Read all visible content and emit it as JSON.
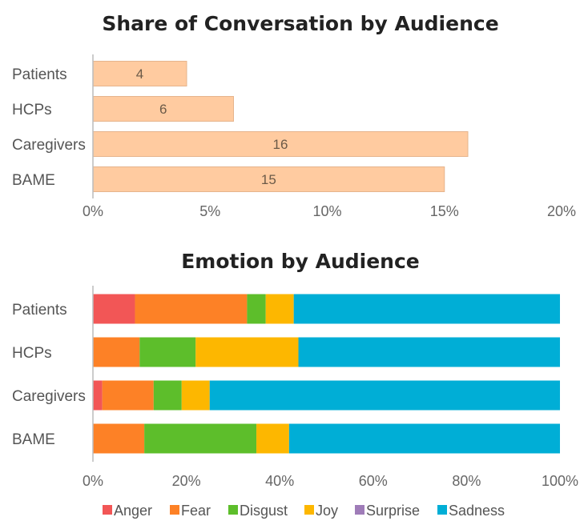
{
  "chart_data": [
    {
      "type": "bar",
      "orientation": "horizontal",
      "title": "Share of Conversation by Audience",
      "categories": [
        "Patients",
        "HCPs",
        "Caregivers",
        "BAME"
      ],
      "values": [
        4,
        6,
        16,
        15
      ],
      "data_labels": [
        "4",
        "6",
        "16",
        "15"
      ],
      "xlim": [
        0,
        20
      ],
      "x_ticks": [
        0,
        5,
        10,
        15,
        20
      ],
      "x_tick_labels": [
        "0%",
        "5%",
        "10%",
        "15%",
        "20%"
      ],
      "xlabel": "",
      "ylabel": "",
      "grid": false,
      "color": "#FFCBA0"
    },
    {
      "type": "bar",
      "orientation": "horizontal",
      "stacked": true,
      "title": "Emotion by Audience",
      "categories": [
        "Patients",
        "HCPs",
        "Caregivers",
        "BAME"
      ],
      "series": [
        {
          "name": "Anger",
          "color": "#F25656",
          "values": [
            9,
            0,
            2,
            0
          ]
        },
        {
          "name": "Fear",
          "color": "#FD8126",
          "values": [
            24,
            10,
            11,
            11
          ]
        },
        {
          "name": "Disgust",
          "color": "#5DBE2B",
          "values": [
            4,
            12,
            6,
            24
          ]
        },
        {
          "name": "Joy",
          "color": "#FDB700",
          "values": [
            6,
            22,
            6,
            7
          ]
        },
        {
          "name": "Surprise",
          "color": "#9F7CB8",
          "values": [
            0,
            0,
            0,
            0
          ]
        },
        {
          "name": "Sadness",
          "color": "#00AED6",
          "values": [
            57,
            56,
            75,
            58
          ]
        }
      ],
      "xlim": [
        0,
        100
      ],
      "x_ticks": [
        0,
        20,
        40,
        60,
        80,
        100
      ],
      "x_tick_labels": [
        "0%",
        "20%",
        "40%",
        "60%",
        "80%",
        "100%"
      ],
      "xlabel": "",
      "ylabel": "",
      "grid": false,
      "legend": "bottom"
    }
  ]
}
